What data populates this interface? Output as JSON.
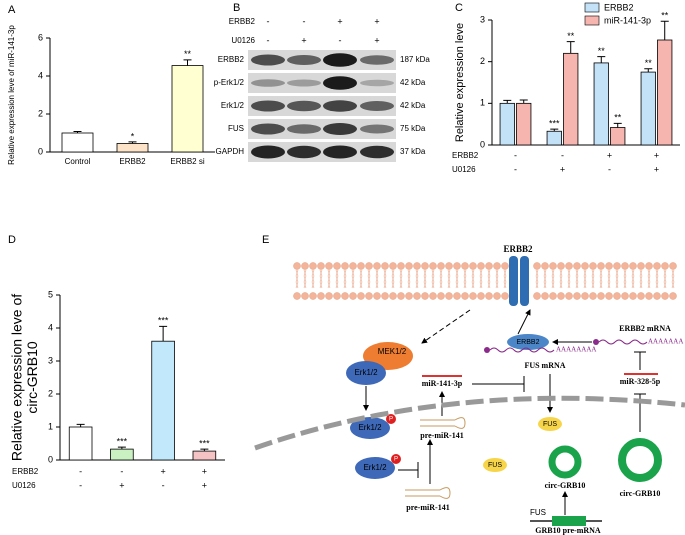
{
  "chart_data": [
    {
      "type": "bar",
      "panel": "A",
      "ylabel": "Relative expression leve of miR-141-3p",
      "categories": [
        "Control",
        "ERBB2",
        "ERBB2 si"
      ],
      "values": [
        1.0,
        0.45,
        4.55
      ],
      "errors": [
        0.08,
        0.08,
        0.3
      ],
      "annotations": [
        null,
        "*",
        "**"
      ],
      "colors": [
        "#ffffff",
        "#fde3c8",
        "#ffffd2"
      ],
      "ylim": [
        0,
        6
      ],
      "yticks": [
        0,
        2,
        4,
        6
      ]
    },
    {
      "type": "bar",
      "panel": "C",
      "ylabel": "Relative expression leve",
      "series": [
        {
          "name": "ERBB2",
          "color": "#c3e2f8",
          "values": [
            1.0,
            0.33,
            1.97,
            1.75
          ],
          "errors": [
            0.07,
            0.05,
            0.15,
            0.08
          ],
          "annotations": [
            null,
            "***",
            "**",
            "**"
          ]
        },
        {
          "name": "miR-141-3p",
          "color": "#f7b5b0",
          "values": [
            1.0,
            2.2,
            0.42,
            2.52
          ],
          "errors": [
            0.08,
            0.28,
            0.1,
            0.45
          ],
          "annotations": [
            null,
            "**",
            "**",
            "**"
          ]
        }
      ],
      "conditions": [
        {
          "name": "ERBB2",
          "values": [
            "-",
            "-",
            "+",
            "+"
          ]
        },
        {
          "name": "U0126",
          "values": [
            "-",
            "+",
            "-",
            "+"
          ]
        }
      ],
      "ylim": [
        0,
        3
      ],
      "yticks": [
        0,
        1,
        2,
        3
      ]
    },
    {
      "type": "bar",
      "panel": "D",
      "ylabel": [
        "Relative expression leve of",
        "circ-GRB10"
      ],
      "values": [
        1.0,
        0.33,
        3.6,
        0.27
      ],
      "errors": [
        0.08,
        0.06,
        0.45,
        0.06
      ],
      "annotations": [
        null,
        "***",
        "***",
        "***"
      ],
      "colors": [
        "#ffffff",
        "#c9f1c1",
        "#c1e9fb",
        "#f5c3c3"
      ],
      "conditions": [
        {
          "name": "ERBB2",
          "values": [
            "-",
            "-",
            "+",
            "+"
          ]
        },
        {
          "name": "U0126",
          "values": [
            "-",
            "+",
            "-",
            "+"
          ]
        }
      ],
      "ylim": [
        0,
        5
      ],
      "yticks": [
        0,
        1,
        2,
        3,
        4,
        5
      ]
    }
  ],
  "blot": {
    "panel": "B",
    "header": [
      {
        "label": "ERBB2",
        "values": [
          "-",
          "-",
          "+",
          "+"
        ]
      },
      {
        "label": "U0126",
        "values": [
          "-",
          "+",
          "-",
          "+"
        ]
      }
    ],
    "rows": [
      {
        "protein": "ERBB2",
        "size": "187 kDa"
      },
      {
        "protein": "p-Erk1/2",
        "size": "42 kDa"
      },
      {
        "protein": "Erk1/2",
        "size": "42 kDa"
      },
      {
        "protein": "FUS",
        "size": "75 kDa"
      },
      {
        "protein": "GAPDH",
        "size": "37 kDa"
      }
    ]
  },
  "diagram": {
    "panel": "E",
    "receptor": "ERBB2",
    "erbb2_protein": "ERBB2",
    "erbb2_mrna": "ERBB2 mRNA",
    "polya1": "AAAAAAA",
    "mir328": "miR-328-5p",
    "circ1": "circ-GRB10",
    "mek": "MEK1/2",
    "erk1": "Erk1/2",
    "erk2": "Erk1/2",
    "p1": "P",
    "mir141": "miR-141-3p",
    "fus_mrna": "FUS mRNA",
    "polya2": "AAAAAAAA",
    "pre_mir1": "pre-miR-141",
    "fus1": "FUS",
    "erk3": "Erk1/2",
    "p2": "P",
    "pre_mir2": "pre-miR-141",
    "fus2": "FUS",
    "circ2": "circ-GRB10",
    "fus3": "FUS",
    "grb10": "GRB10 pre-mRNA"
  }
}
